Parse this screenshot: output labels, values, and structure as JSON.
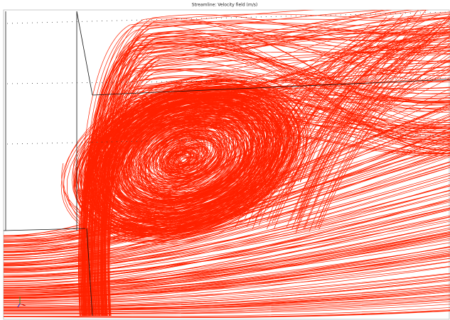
{
  "title": "Streamline: Velocity field (m/s)"
}
